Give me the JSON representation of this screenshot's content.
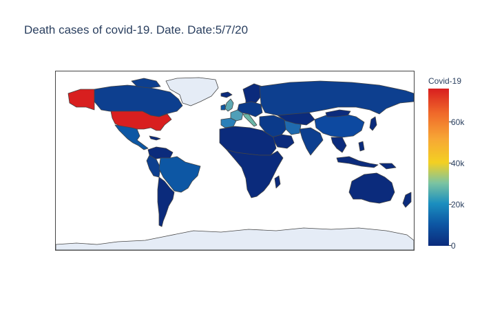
{
  "title": "Death cases of covid-19. Date. Date:5/7/20",
  "colorbar": {
    "title": "Covid-19",
    "ticks": [
      {
        "label": "0",
        "value": 0
      },
      {
        "label": "20k",
        "value": 20000
      },
      {
        "label": "40k",
        "value": 40000
      },
      {
        "label": "60k",
        "value": 60000
      }
    ],
    "range": [
      0,
      76000
    ]
  },
  "colors": {
    "low": "#0b2b7c",
    "mid": "#f3d022",
    "high": "#d81f1f",
    "land_no_data": "#e5ecf6",
    "border": "#444444"
  },
  "chart_data": {
    "type": "choropleth",
    "date": "5/7/20",
    "projection": "equirectangular",
    "highlights": [
      {
        "region": "United States",
        "value": 76000
      },
      {
        "region": "United Kingdom",
        "value": 30000
      },
      {
        "region": "Italy",
        "value": 29900
      },
      {
        "region": "Spain",
        "value": 26000
      },
      {
        "region": "France",
        "value": 25900
      },
      {
        "region": "Brazil",
        "value": 9100
      },
      {
        "region": "Iran",
        "value": 6400
      },
      {
        "region": "China",
        "value": 4600
      }
    ],
    "no_data_regions": [
      "Greenland",
      "Antarctica"
    ]
  }
}
